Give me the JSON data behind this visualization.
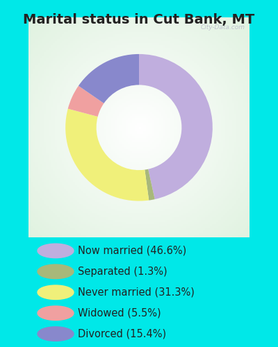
{
  "title": "Marital status in Cut Bank, MT",
  "slices": [
    {
      "label": "Now married (46.6%)",
      "value": 46.6,
      "color": "#c0aede"
    },
    {
      "label": "Separated (1.3%)",
      "value": 1.3,
      "color": "#a8b87a"
    },
    {
      "label": "Never married (31.3%)",
      "value": 31.3,
      "color": "#f0f07a"
    },
    {
      "label": "Widowed (5.5%)",
      "value": 5.5,
      "color": "#f0a0a0"
    },
    {
      "label": "Divorced (15.4%)",
      "value": 15.4,
      "color": "#8888cc"
    }
  ],
  "background_outer": "#00e8e8",
  "watermark": "City-Data.com",
  "title_fontsize": 14,
  "legend_fontsize": 10.5,
  "title_color": "#222222"
}
